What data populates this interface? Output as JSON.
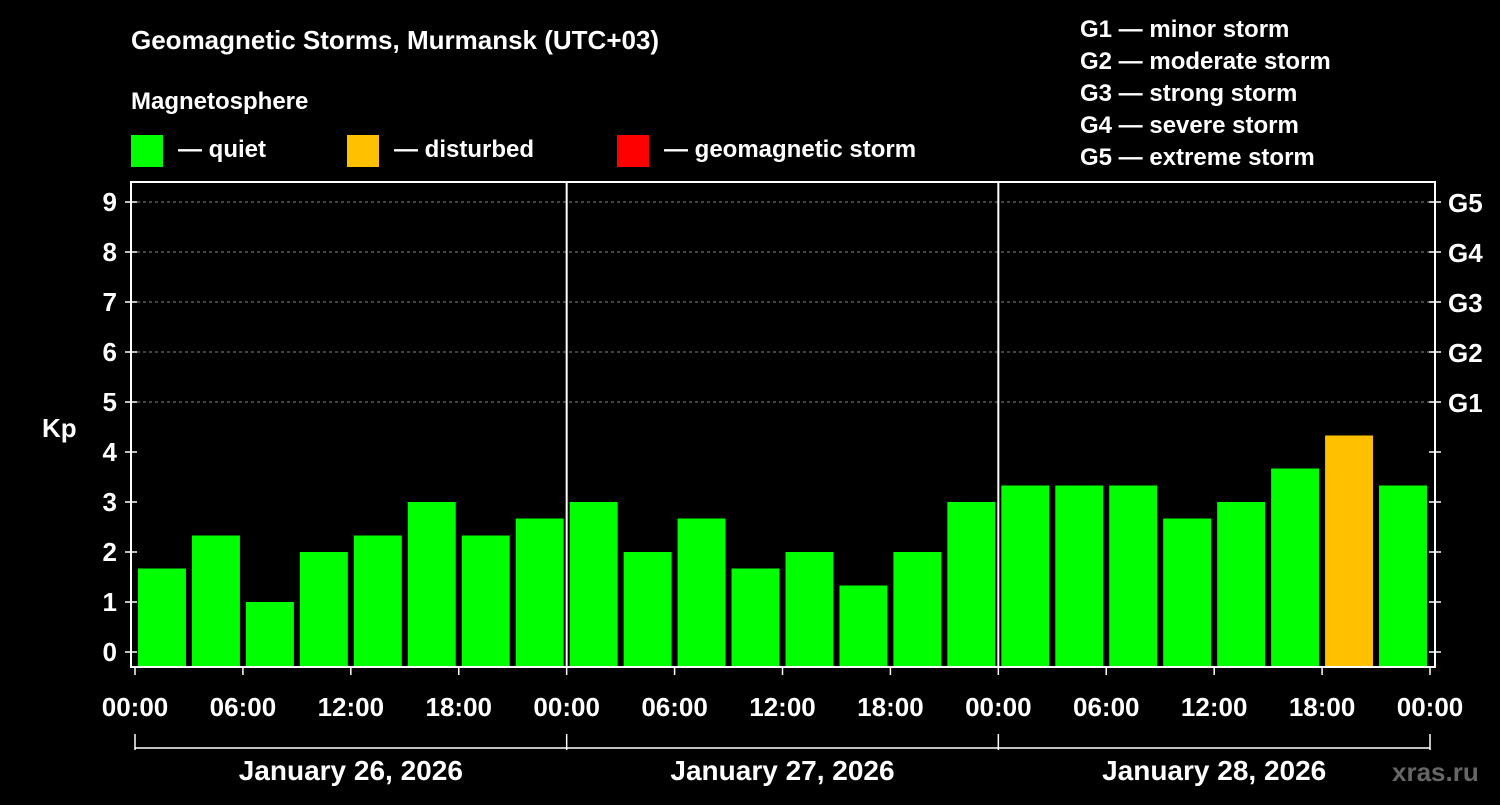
{
  "title": "Geomagnetic Storms, Murmansk (UTC+03)",
  "legend": {
    "heading": "Magnetosphere",
    "items": [
      {
        "label": "— quiet",
        "color": "#00ff00"
      },
      {
        "label": "— disturbed",
        "color": "#ffc000"
      },
      {
        "label": "— geomagnetic storm",
        "color": "#ff0000"
      }
    ]
  },
  "scale_legend": [
    "G1 — minor storm",
    "G2 — moderate storm",
    "G3 — strong storm",
    "G4 — severe storm",
    "G5 — extreme storm"
  ],
  "watermark": "xras.ru",
  "chart_data": {
    "type": "bar",
    "title": "Geomagnetic Storms, Murmansk (UTC+03)",
    "ylabel": "Kp",
    "ylim": [
      -0.3,
      9.4
    ],
    "yticks": [
      "0",
      "1",
      "2",
      "3",
      "4",
      "5",
      "6",
      "7",
      "8",
      "9"
    ],
    "right_ticks": [
      {
        "kp": 5,
        "label": "G1"
      },
      {
        "kp": 6,
        "label": "G2"
      },
      {
        "kp": 7,
        "label": "G3"
      },
      {
        "kp": 8,
        "label": "G4"
      },
      {
        "kp": 9,
        "label": "G5"
      }
    ],
    "xticks": [
      "00:00",
      "06:00",
      "12:00",
      "18:00",
      "00:00",
      "06:00",
      "12:00",
      "18:00",
      "00:00",
      "06:00",
      "12:00",
      "18:00",
      "00:00"
    ],
    "days": [
      "January 26, 2026",
      "January 27, 2026",
      "January 28, 2026"
    ],
    "interval_hours": 3,
    "grid": true,
    "values": [
      1.67,
      2.33,
      1,
      2,
      2.33,
      3,
      2.33,
      2.67,
      3,
      2,
      2.67,
      1.67,
      2,
      1.33,
      2,
      3,
      3.33,
      3.33,
      3.33,
      2.67,
      3,
      3.67,
      4.33,
      3.33
    ],
    "colors": [
      "#00ff00",
      "#00ff00",
      "#00ff00",
      "#00ff00",
      "#00ff00",
      "#00ff00",
      "#00ff00",
      "#00ff00",
      "#00ff00",
      "#00ff00",
      "#00ff00",
      "#00ff00",
      "#00ff00",
      "#00ff00",
      "#00ff00",
      "#00ff00",
      "#00ff00",
      "#00ff00",
      "#00ff00",
      "#00ff00",
      "#00ff00",
      "#00ff00",
      "#ffc000",
      "#00ff00"
    ]
  }
}
